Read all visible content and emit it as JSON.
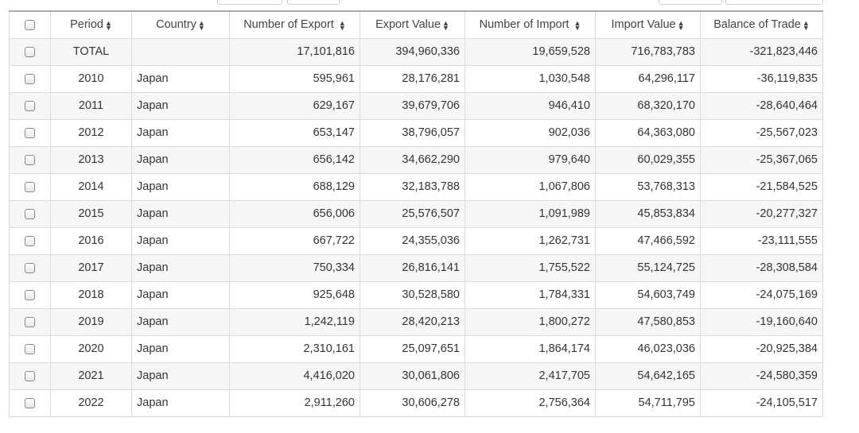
{
  "table": {
    "columns": [
      {
        "key": "period",
        "label": "Period"
      },
      {
        "key": "country",
        "label": "Country"
      },
      {
        "key": "num_export",
        "label": "Number of Export "
      },
      {
        "key": "export_value",
        "label": "Export Value"
      },
      {
        "key": "num_import",
        "label": "Number of Import "
      },
      {
        "key": "import_value",
        "label": "Import Value"
      },
      {
        "key": "balance",
        "label": "Balance of Trade"
      }
    ],
    "sort_icon": "sort-up-down-icon",
    "rows": [
      {
        "period": "TOTAL",
        "country": "",
        "num_export": "17,101,816",
        "export_value": "394,960,336",
        "num_import": "19,659,528",
        "import_value": "716,783,783",
        "balance": "-321,823,446"
      },
      {
        "period": "2010",
        "country": "Japan",
        "num_export": "595,961",
        "export_value": "28,176,281",
        "num_import": "1,030,548",
        "import_value": "64,296,117",
        "balance": "-36,119,835"
      },
      {
        "period": "2011",
        "country": "Japan",
        "num_export": "629,167",
        "export_value": "39,679,706",
        "num_import": "946,410",
        "import_value": "68,320,170",
        "balance": "-28,640,464"
      },
      {
        "period": "2012",
        "country": "Japan",
        "num_export": "653,147",
        "export_value": "38,796,057",
        "num_import": "902,036",
        "import_value": "64,363,080",
        "balance": "-25,567,023"
      },
      {
        "period": "2013",
        "country": "Japan",
        "num_export": "656,142",
        "export_value": "34,662,290",
        "num_import": "979,640",
        "import_value": "60,029,355",
        "balance": "-25,367,065"
      },
      {
        "period": "2014",
        "country": "Japan",
        "num_export": "688,129",
        "export_value": "32,183,788",
        "num_import": "1,067,806",
        "import_value": "53,768,313",
        "balance": "-21,584,525"
      },
      {
        "period": "2015",
        "country": "Japan",
        "num_export": "656,006",
        "export_value": "25,576,507",
        "num_import": "1,091,989",
        "import_value": "45,853,834",
        "balance": "-20,277,327"
      },
      {
        "period": "2016",
        "country": "Japan",
        "num_export": "667,722",
        "export_value": "24,355,036",
        "num_import": "1,262,731",
        "import_value": "47,466,592",
        "balance": "-23,111,555"
      },
      {
        "period": "2017",
        "country": "Japan",
        "num_export": "750,334",
        "export_value": "26,816,141",
        "num_import": "1,755,522",
        "import_value": "55,124,725",
        "balance": "-28,308,584"
      },
      {
        "period": "2018",
        "country": "Japan",
        "num_export": "925,648",
        "export_value": "30,528,580",
        "num_import": "1,784,331",
        "import_value": "54,603,749",
        "balance": "-24,075,169"
      },
      {
        "period": "2019",
        "country": "Japan",
        "num_export": "1,242,119",
        "export_value": "28,420,213",
        "num_import": "1,800,272",
        "import_value": "47,580,853",
        "balance": "-19,160,640"
      },
      {
        "period": "2020",
        "country": "Japan",
        "num_export": "2,310,161",
        "export_value": "25,097,651",
        "num_import": "1,864,174",
        "import_value": "46,023,036",
        "balance": "-20,925,384"
      },
      {
        "period": "2021",
        "country": "Japan",
        "num_export": "4,416,020",
        "export_value": "30,061,806",
        "num_import": "2,417,705",
        "import_value": "54,642,165",
        "balance": "-24,580,359"
      },
      {
        "period": "2022",
        "country": "Japan",
        "num_export": "2,911,260",
        "export_value": "30,606,278",
        "num_import": "2,756,364",
        "import_value": "54,711,795",
        "balance": "-24,105,517"
      }
    ]
  }
}
